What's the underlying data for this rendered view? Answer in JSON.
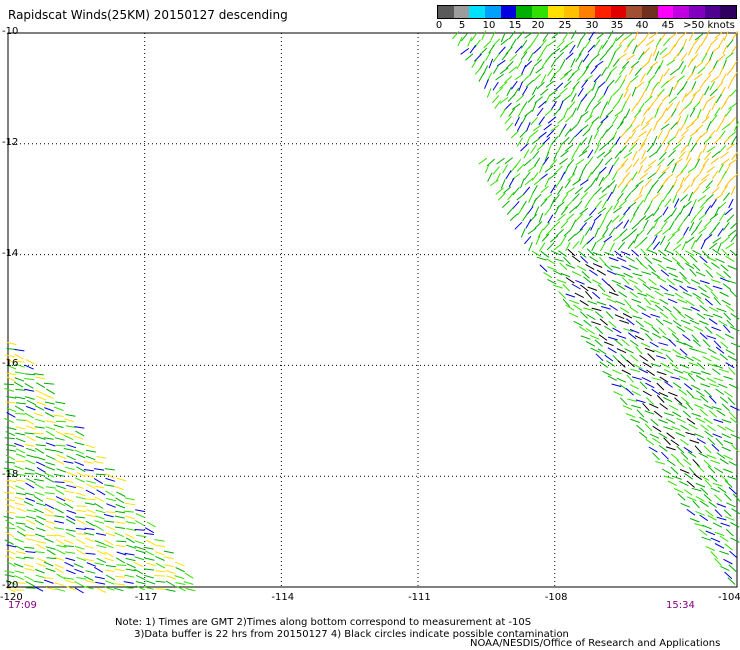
{
  "title": "Rapidscat Winds(25KM) 20150127 descending",
  "legend": {
    "labels": [
      "0",
      "5",
      "10",
      "15",
      "20",
      "25",
      "30",
      "35",
      "40",
      "45",
      ">50 knots"
    ],
    "colors": [
      "#5a5a5a",
      "#9c9c9c",
      "#00e0ff",
      "#00a0ff",
      "#0000e0",
      "#00b000",
      "#30e000",
      "#ffe000",
      "#ffc000",
      "#ff8000",
      "#ff2000",
      "#e00000",
      "#a05030",
      "#703020",
      "#ff00ff",
      "#c000e0",
      "#8000c0",
      "#500090",
      "#300060"
    ]
  },
  "map": {
    "lon_range": [
      -120,
      -104
    ],
    "lat_range": [
      -20,
      -10
    ],
    "x_ticks": [
      "-120",
      "-117",
      "-114",
      "-111",
      "-108",
      "-104"
    ],
    "y_ticks": [
      "-10",
      "-12",
      "-14",
      "-16",
      "-18",
      "-20"
    ],
    "grid": "dotted"
  },
  "times": {
    "left": "17:09",
    "right": "15:34"
  },
  "notes": {
    "line1": "Note: 1) Times are GMT 2)Times along bottom correspond to measurement at -10S",
    "line2": "3)Data buffer is 22 hrs from 20150127 4) Black circles indicate possible contamination"
  },
  "credit": "NOAA/NESDIS/Office of Research and Applications",
  "swaths": [
    {
      "name": "east-swath",
      "speed_colors": [
        "#00b000",
        "#30e000",
        "#0000e0",
        "#ffc000",
        "#000000"
      ]
    },
    {
      "name": "west-swath",
      "speed_colors": [
        "#00b000",
        "#30e000",
        "#0000e0",
        "#ffe000"
      ]
    }
  ]
}
